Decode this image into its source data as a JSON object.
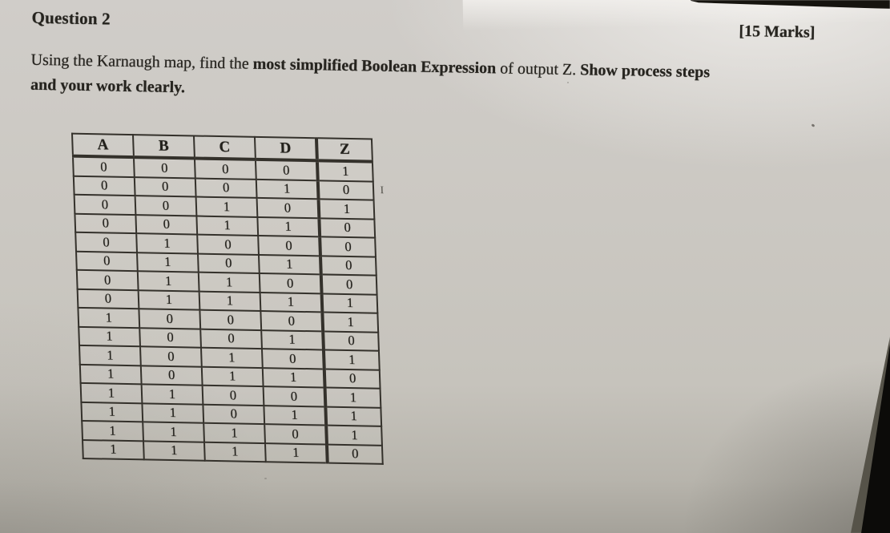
{
  "header": {
    "question_label": "Question 2",
    "marks": "[15 Marks]"
  },
  "prompt_lines": [
    {
      "segments": [
        {
          "text": "Using the Karnaugh map, find the ",
          "bold": false
        },
        {
          "text": "most simplified Boolean Expression",
          "bold": true
        },
        {
          "text": " of output Z. ",
          "bold": false
        },
        {
          "text": "Show process steps",
          "bold": true
        }
      ]
    },
    {
      "segments": [
        {
          "text": "and your work clearly.",
          "bold": true
        }
      ]
    }
  ],
  "truth_table": {
    "headers": [
      "A",
      "B",
      "C",
      "D",
      "Z"
    ],
    "rows": [
      [
        0,
        0,
        0,
        0,
        1
      ],
      [
        0,
        0,
        0,
        1,
        0
      ],
      [
        0,
        0,
        1,
        0,
        1
      ],
      [
        0,
        0,
        1,
        1,
        0
      ],
      [
        0,
        1,
        0,
        0,
        0
      ],
      [
        0,
        1,
        0,
        1,
        0
      ],
      [
        0,
        1,
        1,
        0,
        0
      ],
      [
        0,
        1,
        1,
        1,
        1
      ],
      [
        1,
        0,
        0,
        0,
        1
      ],
      [
        1,
        0,
        0,
        1,
        0
      ],
      [
        1,
        0,
        1,
        0,
        1
      ],
      [
        1,
        0,
        1,
        1,
        0
      ],
      [
        1,
        1,
        0,
        0,
        1
      ],
      [
        1,
        1,
        0,
        1,
        1
      ],
      [
        1,
        1,
        1,
        0,
        1
      ],
      [
        1,
        1,
        1,
        1,
        0
      ]
    ]
  },
  "cursor": {
    "glyph": "I",
    "row_index": 1
  },
  "colors": {
    "paper": "#cbc8c2",
    "ink": "#26241f",
    "table_border": "#34312b",
    "photo_edge_black": "#0c0b09",
    "photo_edge_gray": "#565349"
  }
}
